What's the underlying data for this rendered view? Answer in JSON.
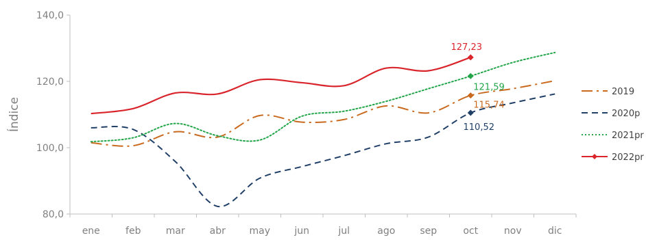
{
  "chart_data": {
    "type": "line",
    "title": "",
    "xlabel": "",
    "ylabel": "Índice",
    "ylim": [
      80,
      140
    ],
    "yticks": [
      80,
      100,
      120,
      140
    ],
    "ytick_labels": [
      "80,0",
      "100,0",
      "120,0",
      "140,0"
    ],
    "grid": false,
    "legend_position": "right",
    "categories": [
      "ene",
      "feb",
      "mar",
      "abr",
      "may",
      "jun",
      "jul",
      "ago",
      "sep",
      "oct",
      "nov",
      "dic"
    ],
    "series": [
      {
        "name": "2019",
        "color": "#c9691e",
        "dash": "dashdot",
        "values": [
          101.5,
          100.6,
          104.8,
          103.2,
          109.7,
          107.7,
          108.5,
          112.6,
          110.5,
          115.74,
          117.8,
          120.2
        ],
        "end_label": "115,74"
      },
      {
        "name": "2020p",
        "color": "#203f66",
        "dash": "dashed",
        "values": [
          106.0,
          105.5,
          95.8,
          82.3,
          90.8,
          94.3,
          97.6,
          101.2,
          103.2,
          110.52,
          113.5,
          116.2
        ],
        "end_label": "110,52"
      },
      {
        "name": "2021pr",
        "color": "#21a548",
        "dash": "dotted",
        "values": [
          101.8,
          103.0,
          107.3,
          103.6,
          102.3,
          109.5,
          111.0,
          114.0,
          117.8,
          121.59,
          125.7,
          128.7
        ],
        "end_label": "121,59"
      },
      {
        "name": "2022pr",
        "color": "#d9242b",
        "dash": "solid",
        "values": [
          110.3,
          111.8,
          116.5,
          116.2,
          120.5,
          119.6,
          118.7,
          124.0,
          123.2,
          127.23,
          null,
          null
        ],
        "end_label": "127,23"
      }
    ]
  }
}
